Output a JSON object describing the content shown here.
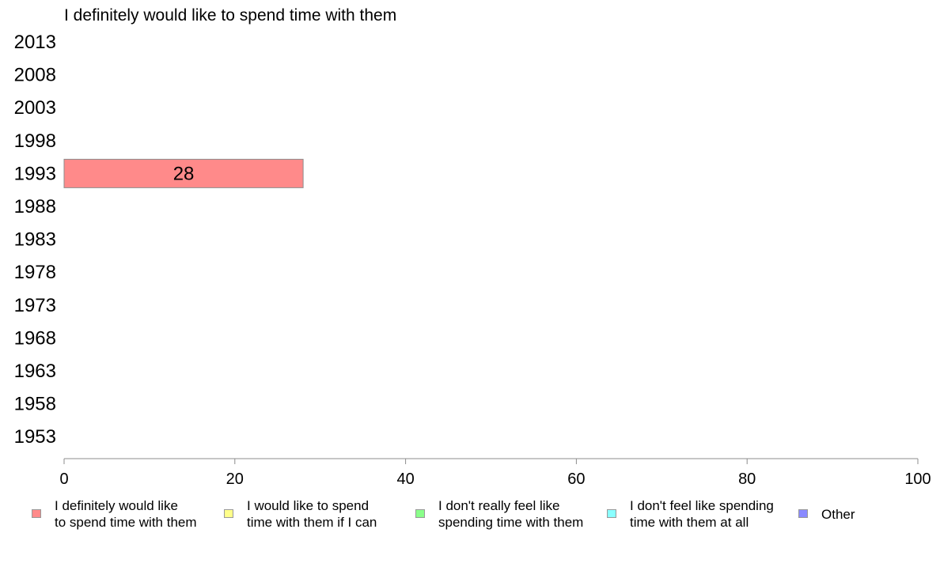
{
  "chart_data": {
    "type": "bar",
    "orientation": "horizontal",
    "title": "I definitely would like to spend time with them",
    "categories": [
      "2013",
      "2008",
      "2003",
      "1998",
      "1993",
      "1988",
      "1983",
      "1978",
      "1973",
      "1968",
      "1963",
      "1958",
      "1953"
    ],
    "series": [
      {
        "name": "I definitely would like to spend time with them",
        "values": [
          null,
          null,
          null,
          null,
          28,
          null,
          null,
          null,
          null,
          null,
          null,
          null,
          null
        ],
        "color": "#ff8a8a"
      }
    ],
    "data_labels": [
      "",
      "",
      "",
      "",
      "28",
      "",
      "",
      "",
      "",
      "",
      "",
      "",
      ""
    ],
    "xlim": [
      0,
      100
    ],
    "xticks": [
      0,
      20,
      40,
      60,
      80,
      100
    ],
    "xtick_labels": [
      "0",
      "20",
      "40",
      "60",
      "80",
      "100"
    ],
    "xlabel": "",
    "ylabel": "",
    "grid": false,
    "legend_position": "bottom",
    "legend": [
      {
        "label": "I definitely would like\nto spend time with them",
        "color": "#ff8a8a"
      },
      {
        "label": "I would like to spend\ntime with them if I can",
        "color": "#ffff8a"
      },
      {
        "label": "I don't really feel like\nspending time with them",
        "color": "#8aff8a"
      },
      {
        "label": "I don't feel like spending\ntime with them at all",
        "color": "#8affff"
      },
      {
        "label": "Other",
        "color": "#8a8aff"
      }
    ]
  }
}
